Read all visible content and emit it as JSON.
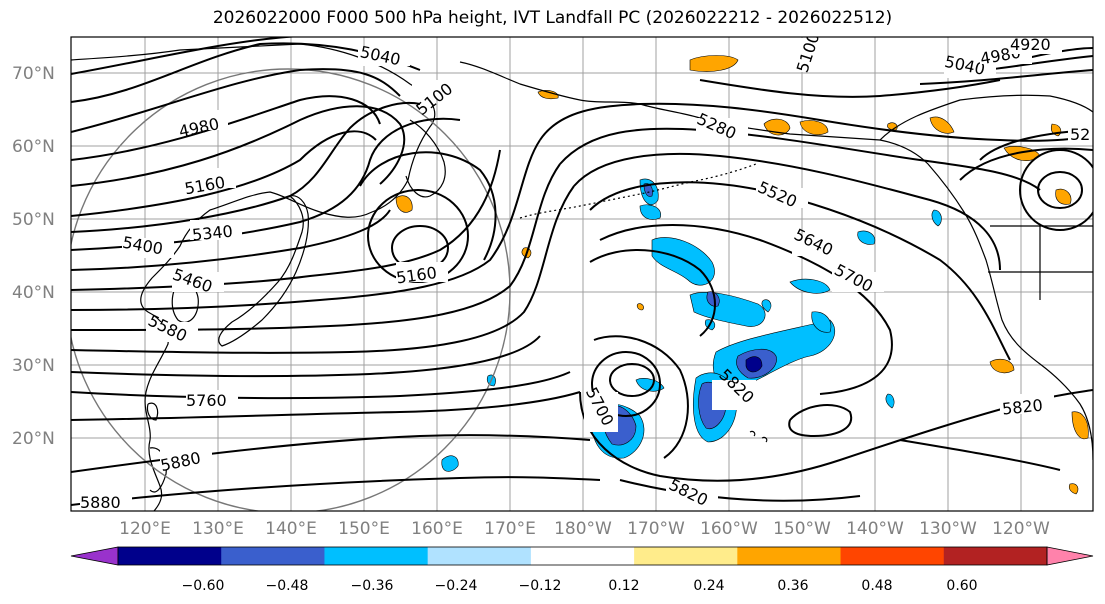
{
  "title": "2026022000 F000 500 hPa height, IVT Landfall PC (2026022212 - 2026022512)",
  "latitude_labels": [
    "70°N",
    "60°N",
    "50°N",
    "40°N",
    "30°N",
    "20°N"
  ],
  "longitude_labels": [
    "120°E",
    "130°E",
    "140°E",
    "150°E",
    "160°E",
    "170°E",
    "180°W",
    "170°W",
    "160°W",
    "150°W",
    "140°W",
    "130°W",
    "120°W"
  ],
  "contour_labels": [
    "5040",
    "5100",
    "4980",
    "5160",
    "5340",
    "5400",
    "5460",
    "5580",
    "5760",
    "5880",
    "5880",
    "5160",
    "5100",
    "5280",
    "5520",
    "5640",
    "5700",
    "5700",
    "5820",
    "5820",
    "5820",
    "5040",
    "4980",
    "4920",
    "52"
  ],
  "colorbar": {
    "ticks": [
      "−0.60",
      "−0.48",
      "−0.36",
      "−0.24",
      "−0.12",
      "0.12",
      "0.24",
      "0.36",
      "0.48",
      "0.60"
    ],
    "colors": [
      "#9932cc",
      "#00008b",
      "#3a5fcd",
      "#00bfff",
      "#b0e2ff",
      "#ffffff",
      "#ffec8b",
      "#ffa500",
      "#ff4500",
      "#b22222",
      "#ff82ab"
    ]
  }
}
